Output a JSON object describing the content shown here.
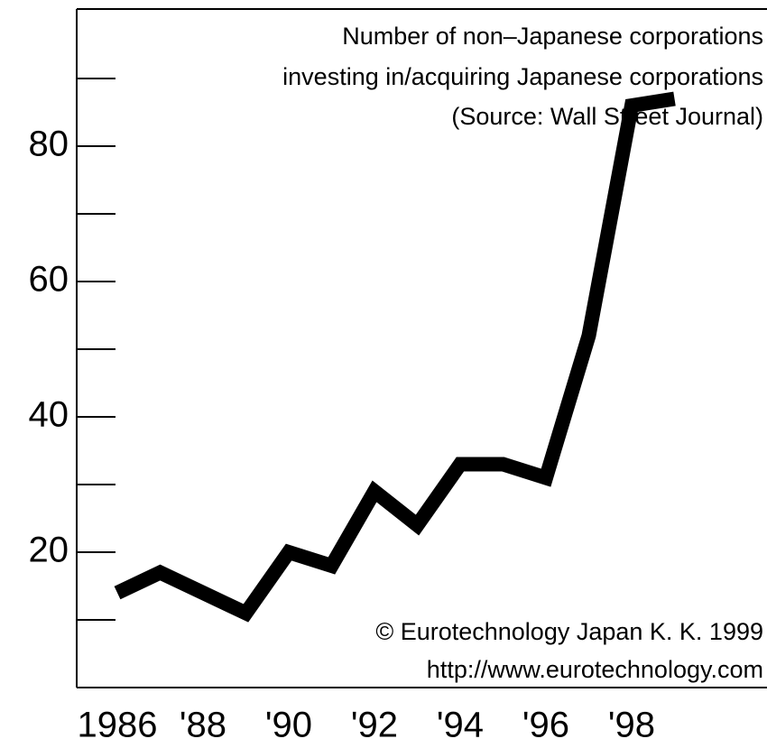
{
  "chart_data": {
    "type": "line",
    "title": [
      "Number of non–Japanese corporations",
      "investing in/acquiring Japanese corporations",
      "(Source: Wall Street Journal)"
    ],
    "annotations": [
      "© Eurotechnology Japan K. K. 1999",
      "http://www.eurotechnology.com"
    ],
    "x": [
      1986,
      1987,
      1988,
      1989,
      1990,
      1991,
      1992,
      1993,
      1994,
      1995,
      1996,
      1997,
      1998,
      1999
    ],
    "series": [
      {
        "name": "Number of non–Japanese corporations investing in/acquiring Japanese corporations",
        "color": "#000000",
        "values": [
          14,
          17,
          14,
          11,
          20,
          18,
          29,
          24,
          33,
          33,
          31,
          52,
          86,
          87
        ]
      }
    ],
    "xlim": [
      1985,
      2001
    ],
    "xticks": [
      1986,
      {
        "value": 1988,
        "label": "'88"
      },
      {
        "value": 1990,
        "label": "'90"
      },
      {
        "value": 1992,
        "label": "'92"
      },
      {
        "value": 1994,
        "label": "'94"
      },
      {
        "value": 1996,
        "label": "'96"
      },
      {
        "value": 1998,
        "label": "'98"
      }
    ],
    "ylim": [
      0,
      100
    ],
    "yticks": [
      20,
      40,
      60,
      80
    ],
    "minor_yticks": [
      10,
      30,
      50,
      70,
      90
    ]
  }
}
